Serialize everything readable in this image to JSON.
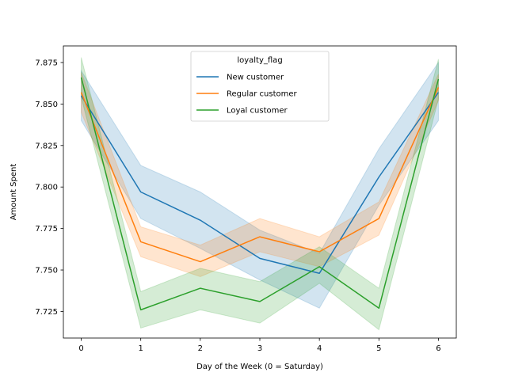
{
  "chart_data": {
    "type": "line",
    "title": "",
    "xlabel": "Day of the Week (0 = Saturday)",
    "ylabel": "Amount Spent",
    "x": [
      0,
      1,
      2,
      3,
      4,
      5,
      6
    ],
    "xlim": [
      -0.3,
      6.3
    ],
    "ylim": [
      7.709,
      7.885
    ],
    "xticks": [
      0,
      1,
      2,
      3,
      4,
      5,
      6
    ],
    "yticks": [
      7.725,
      7.75,
      7.775,
      7.8,
      7.825,
      7.85,
      7.875
    ],
    "ytick_labels": [
      "7.725",
      "7.750",
      "7.775",
      "7.800",
      "7.825",
      "7.850",
      "7.875"
    ],
    "grid": false,
    "legend": {
      "title": "loyalty_flag",
      "placement": "upper center"
    },
    "series": [
      {
        "name": "New customer",
        "color": "#1f77b4",
        "values": [
          7.855,
          7.797,
          7.78,
          7.757,
          7.748,
          7.806,
          7.857
        ],
        "ci_lower": [
          7.84,
          7.781,
          7.763,
          7.744,
          7.727,
          7.789,
          7.84
        ],
        "ci_upper": [
          7.87,
          7.813,
          7.797,
          7.774,
          7.76,
          7.823,
          7.875
        ]
      },
      {
        "name": "Regular customer",
        "color": "#ff7f0e",
        "values": [
          7.857,
          7.767,
          7.755,
          7.77,
          7.761,
          7.781,
          7.86
        ],
        "ci_lower": [
          7.845,
          7.758,
          7.746,
          7.761,
          7.752,
          7.771,
          7.852
        ],
        "ci_upper": [
          7.869,
          7.776,
          7.765,
          7.781,
          7.77,
          7.791,
          7.868
        ]
      },
      {
        "name": "Loyal customer",
        "color": "#2ca02c",
        "values": [
          7.866,
          7.726,
          7.739,
          7.731,
          7.752,
          7.727,
          7.865
        ],
        "ci_lower": [
          7.854,
          7.715,
          7.726,
          7.718,
          7.742,
          7.714,
          7.853
        ],
        "ci_upper": [
          7.878,
          7.737,
          7.751,
          7.743,
          7.764,
          7.739,
          7.877
        ]
      }
    ]
  }
}
